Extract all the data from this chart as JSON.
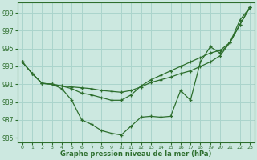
{
  "bg_color": "#cce8e0",
  "grid_color": "#aad4cc",
  "line_color": "#2d6e2d",
  "marker_color": "#2d6e2d",
  "xlabel": "Graphe pression niveau de la mer (hPa)",
  "xlim": [
    -0.5,
    23.5
  ],
  "ylim": [
    984.5,
    1000.2
  ],
  "yticks": [
    985,
    987,
    989,
    991,
    993,
    995,
    997,
    999
  ],
  "xticks": [
    0,
    1,
    2,
    3,
    4,
    5,
    6,
    7,
    8,
    9,
    10,
    11,
    12,
    13,
    14,
    15,
    16,
    17,
    18,
    19,
    20,
    21,
    22,
    23
  ],
  "series": [
    [
      993.5,
      992.2,
      991.1,
      991.0,
      990.5,
      989.2,
      987.0,
      986.5,
      985.8,
      985.5,
      985.3,
      986.3,
      987.3,
      987.4,
      987.3,
      987.4,
      990.3,
      989.2,
      993.5,
      995.2,
      994.5,
      995.7,
      998.2,
      999.6
    ],
    [
      993.5,
      992.2,
      991.1,
      991.0,
      990.8,
      990.5,
      990.0,
      989.8,
      989.5,
      989.2,
      989.2,
      989.8,
      990.8,
      991.5,
      992.0,
      992.5,
      993.0,
      993.5,
      994.0,
      994.5,
      994.8,
      995.7,
      997.7,
      999.6
    ],
    [
      993.5,
      992.2,
      991.1,
      991.0,
      990.8,
      990.7,
      990.6,
      990.5,
      990.3,
      990.2,
      990.1,
      990.3,
      990.7,
      991.2,
      991.5,
      991.8,
      992.2,
      992.5,
      993.0,
      993.5,
      994.2,
      995.7,
      997.7,
      999.6
    ]
  ]
}
